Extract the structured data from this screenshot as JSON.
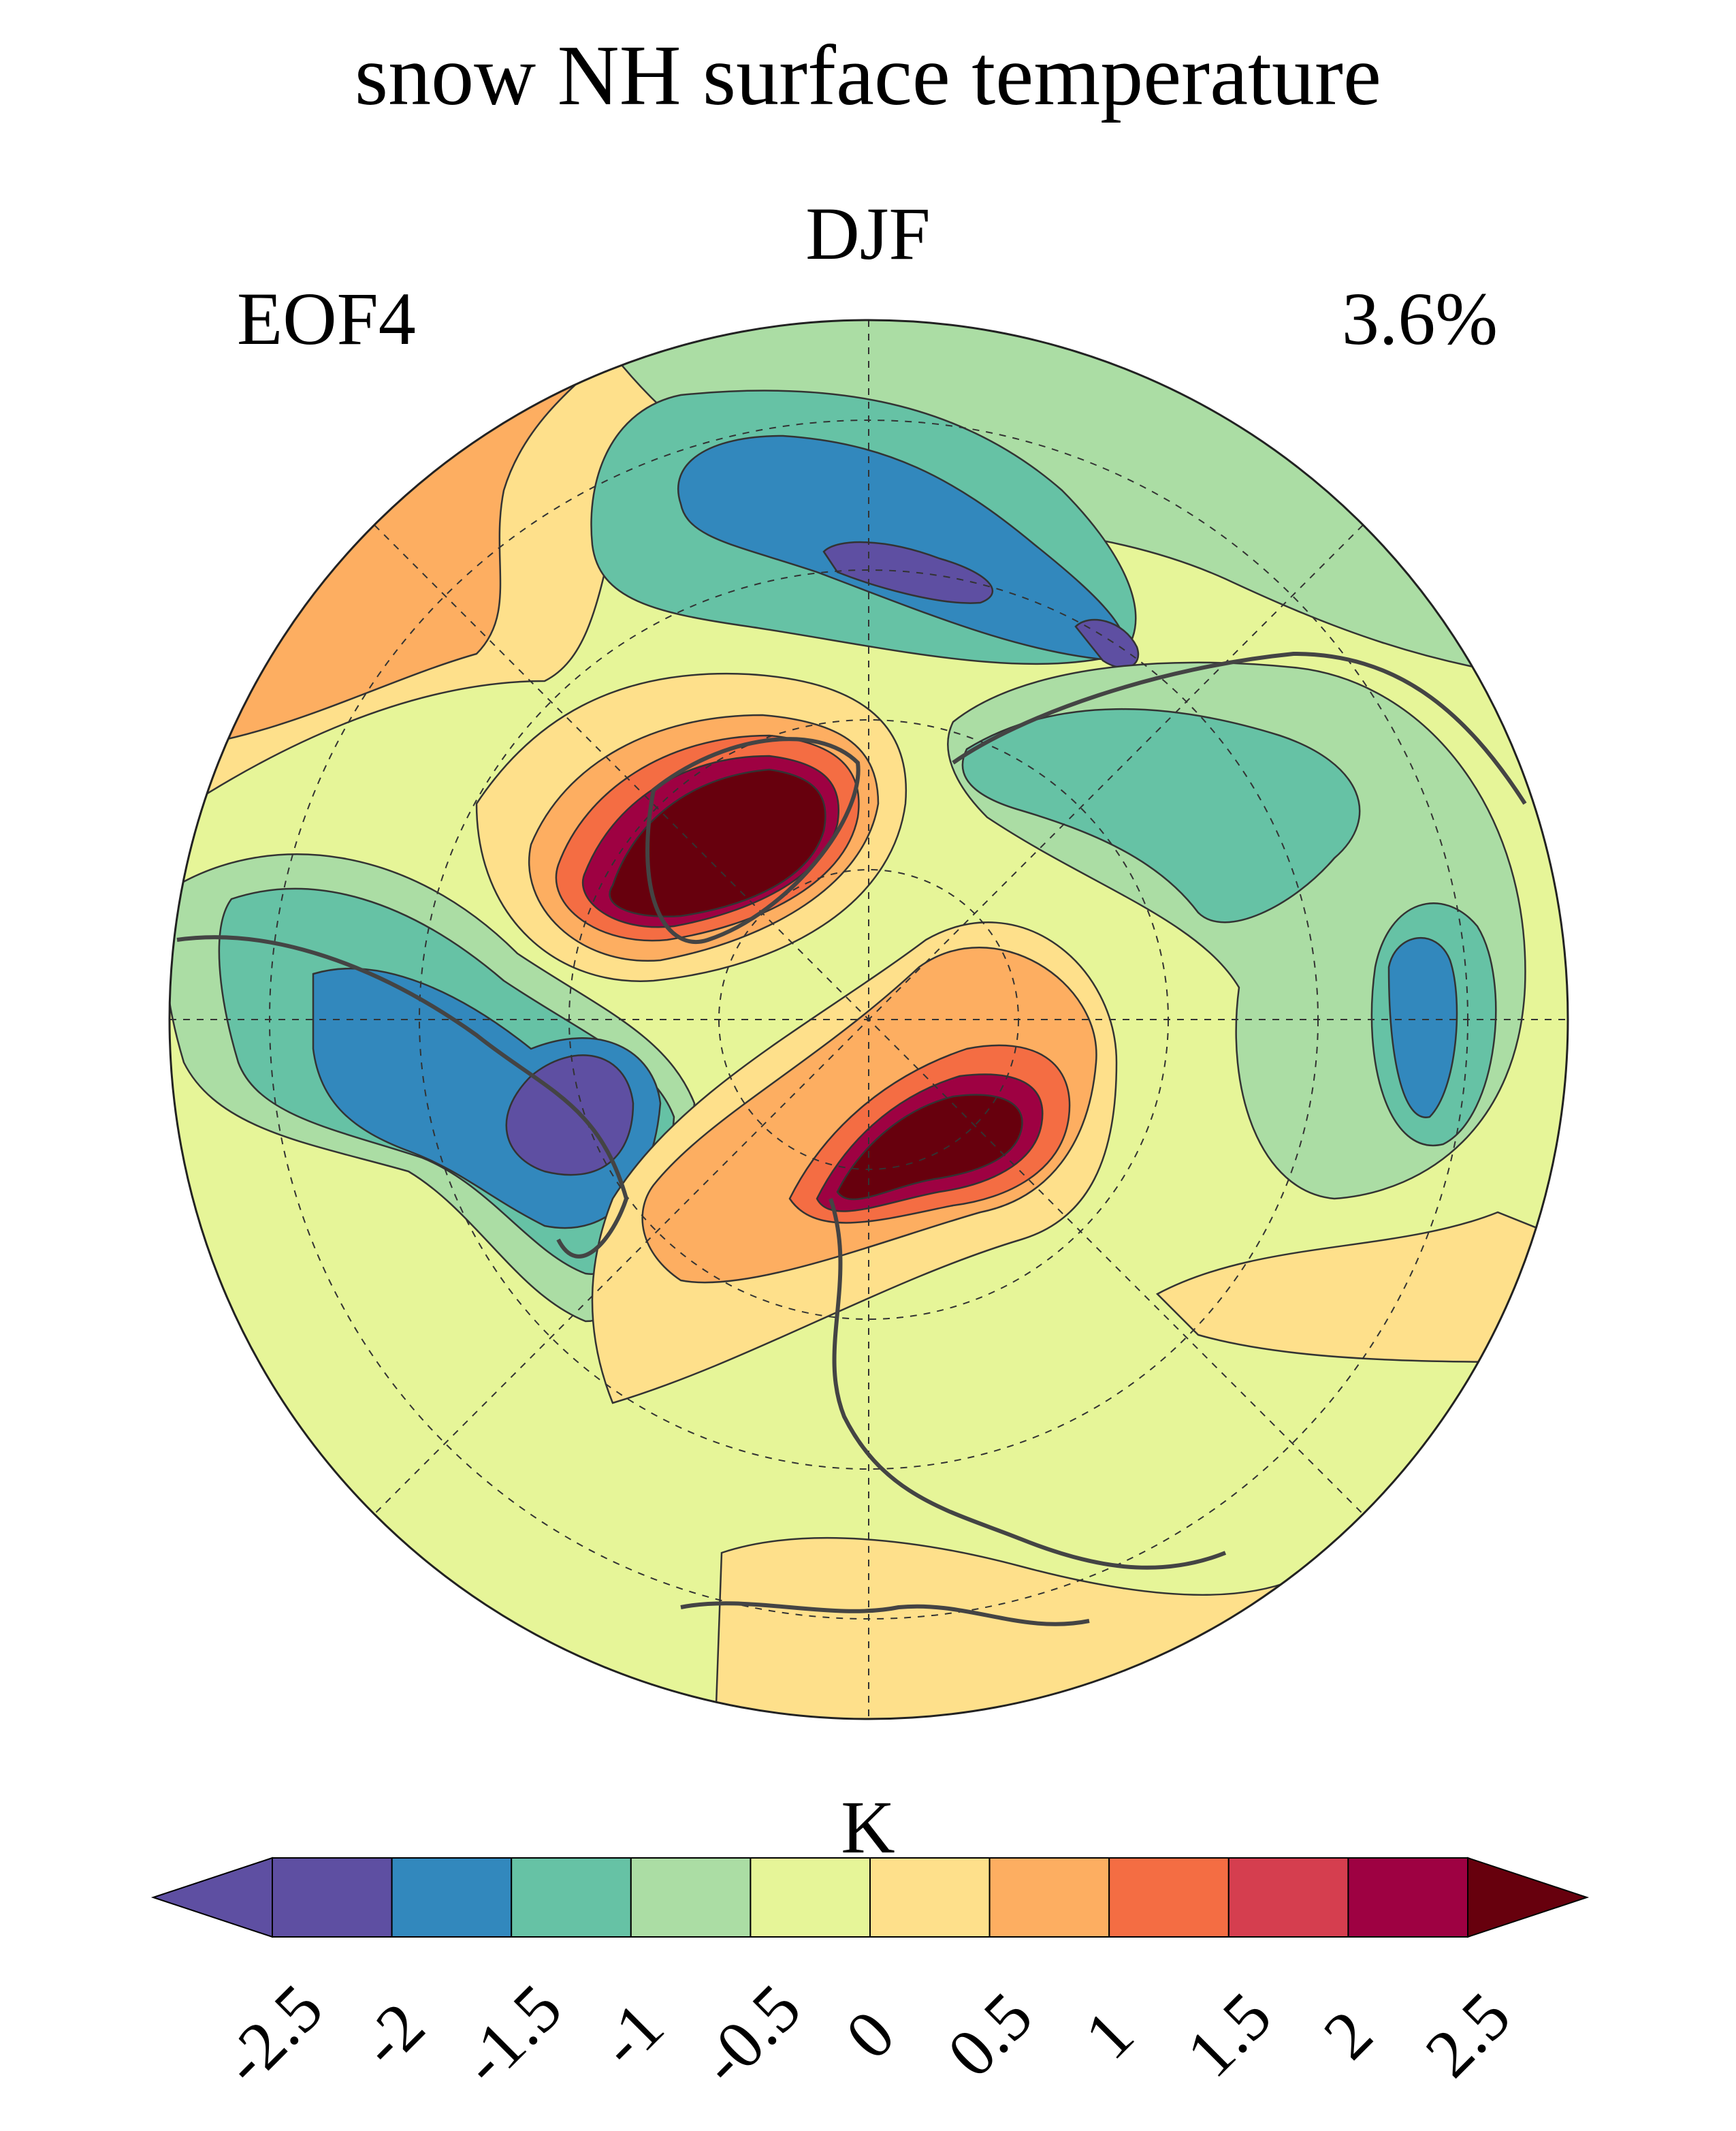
{
  "title": "snow NH surface temperature",
  "season": "DJF",
  "mode_label": "EOF4",
  "variance_explained": "3.6%",
  "colorbar": {
    "units": "K",
    "ticks": [
      "-2.5",
      "-2",
      "-1.5",
      "-1",
      "-0.5",
      "0",
      "0.5",
      "1",
      "1.5",
      "2",
      "2.5"
    ],
    "colors": [
      "#5e4fa2",
      "#5e4fa2",
      "#3288bd",
      "#66c2a5",
      "#abdda4",
      "#e6f598",
      "#fee08b",
      "#fdae61",
      "#f46d43",
      "#d53e4f",
      "#9e0142",
      "#67000d"
    ],
    "extend": "both"
  },
  "map": {
    "projection": "north polar stereographic",
    "background_level": "0 to -0.5",
    "features": [
      {
        "name": "central-greenland-positive",
        "level": 2.5,
        "color": "#67000d"
      },
      {
        "name": "scandinavia-barents-positive",
        "level": 2.5,
        "color": "#67000d"
      },
      {
        "name": "north-america-negative",
        "level": -2.5,
        "color": "#5e4fa2"
      },
      {
        "name": "east-asia-negative",
        "level": -2,
        "color": "#3288bd"
      },
      {
        "name": "pacific-negative",
        "level": -2.5,
        "color": "#5e4fa2"
      }
    ]
  }
}
